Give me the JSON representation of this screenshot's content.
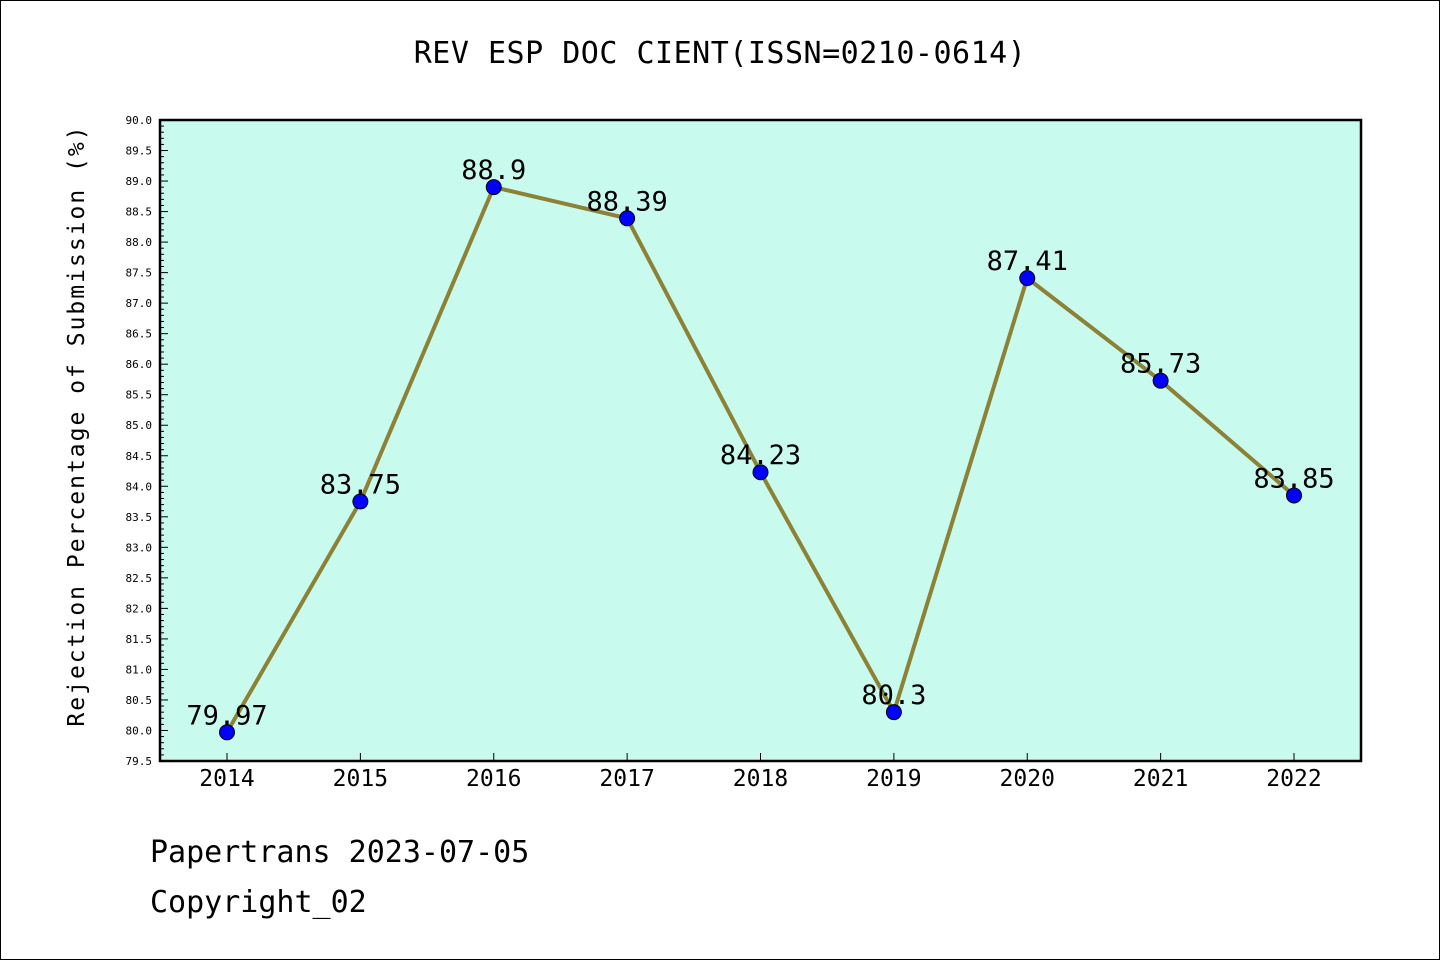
{
  "footer": {
    "line1": "Papertrans 2023-07-05",
    "line2": "Copyright_02"
  },
  "chart_data": {
    "type": "line",
    "title": "REV ESP DOC CIENT(ISSN=0210-0614)",
    "xlabel": "",
    "ylabel": "Rejection Percentage of Submission (%)",
    "categories": [
      "2014",
      "2015",
      "2016",
      "2017",
      "2018",
      "2019",
      "2020",
      "2021",
      "2022"
    ],
    "values": [
      79.97,
      83.75,
      88.9,
      88.39,
      84.23,
      80.3,
      87.41,
      85.73,
      83.85
    ],
    "data_labels": [
      "79.97",
      "83.75",
      "88.9",
      "88.39",
      "84.23",
      "80.3",
      "87.41",
      "85.73",
      "83.85"
    ],
    "ylim": [
      79.5,
      90.0
    ],
    "yticks": [
      "79.5",
      "80.0",
      "80.5",
      "81.0",
      "81.5",
      "82.0",
      "82.5",
      "83.0",
      "83.5",
      "84.0",
      "84.5",
      "85.0",
      "85.5",
      "86.0",
      "86.5",
      "87.0",
      "87.5",
      "88.0",
      "88.5",
      "89.0",
      "89.5",
      "90.0"
    ],
    "grid": false,
    "legend": "none",
    "colors": {
      "plot_background": "#c8fbee",
      "line": "#8c8135",
      "marker": "#0000ff"
    }
  }
}
